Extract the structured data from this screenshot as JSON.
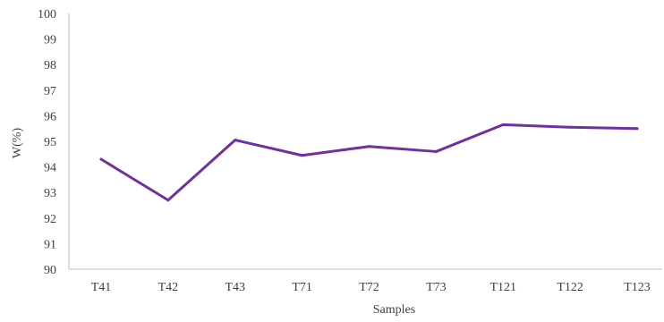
{
  "chart_data": {
    "type": "line",
    "title": "",
    "xlabel": "Samples",
    "ylabel": "W(%)",
    "categories": [
      "T41",
      "T42",
      "T43",
      "T71",
      "T72",
      "T73",
      "T121",
      "T122",
      "T123"
    ],
    "series": [
      {
        "values": [
          94.3,
          92.7,
          95.05,
          94.45,
          94.8,
          94.6,
          95.65,
          95.55,
          95.5
        ]
      }
    ],
    "ylim": [
      90,
      100
    ],
    "yticks": [
      90,
      91,
      92,
      93,
      94,
      95,
      96,
      97,
      98,
      99,
      100
    ],
    "grid": false,
    "legend": "none"
  },
  "colors": {
    "line": "#7030a0",
    "axis": "#bfbfbf",
    "text": "#404040"
  }
}
